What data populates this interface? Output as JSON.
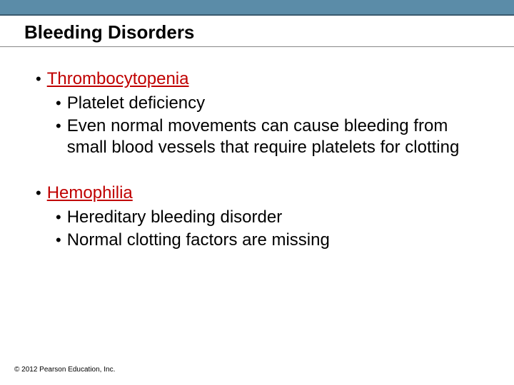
{
  "colors": {
    "top_bar_bg": "#5b8ca8",
    "top_bar_border": "#3a5a6e",
    "title_underline": "#888888",
    "body_text": "#000000",
    "key_term": "#c00000",
    "background": "#ffffff"
  },
  "typography": {
    "title_fontsize": 26,
    "title_weight": "bold",
    "bullet_fontsize": 24,
    "copyright_fontsize": 10,
    "font_family": "Arial"
  },
  "title": "Bleeding Disorders",
  "sections": [
    {
      "term": "Thrombocytopenia",
      "subpoints": [
        "Platelet deficiency",
        "Even normal movements can cause bleeding from small blood vessels that require platelets for clotting"
      ]
    },
    {
      "term": "Hemophilia",
      "subpoints": [
        "Hereditary bleeding disorder",
        "Normal clotting factors are missing"
      ]
    }
  ],
  "copyright": "© 2012 Pearson Education, Inc."
}
